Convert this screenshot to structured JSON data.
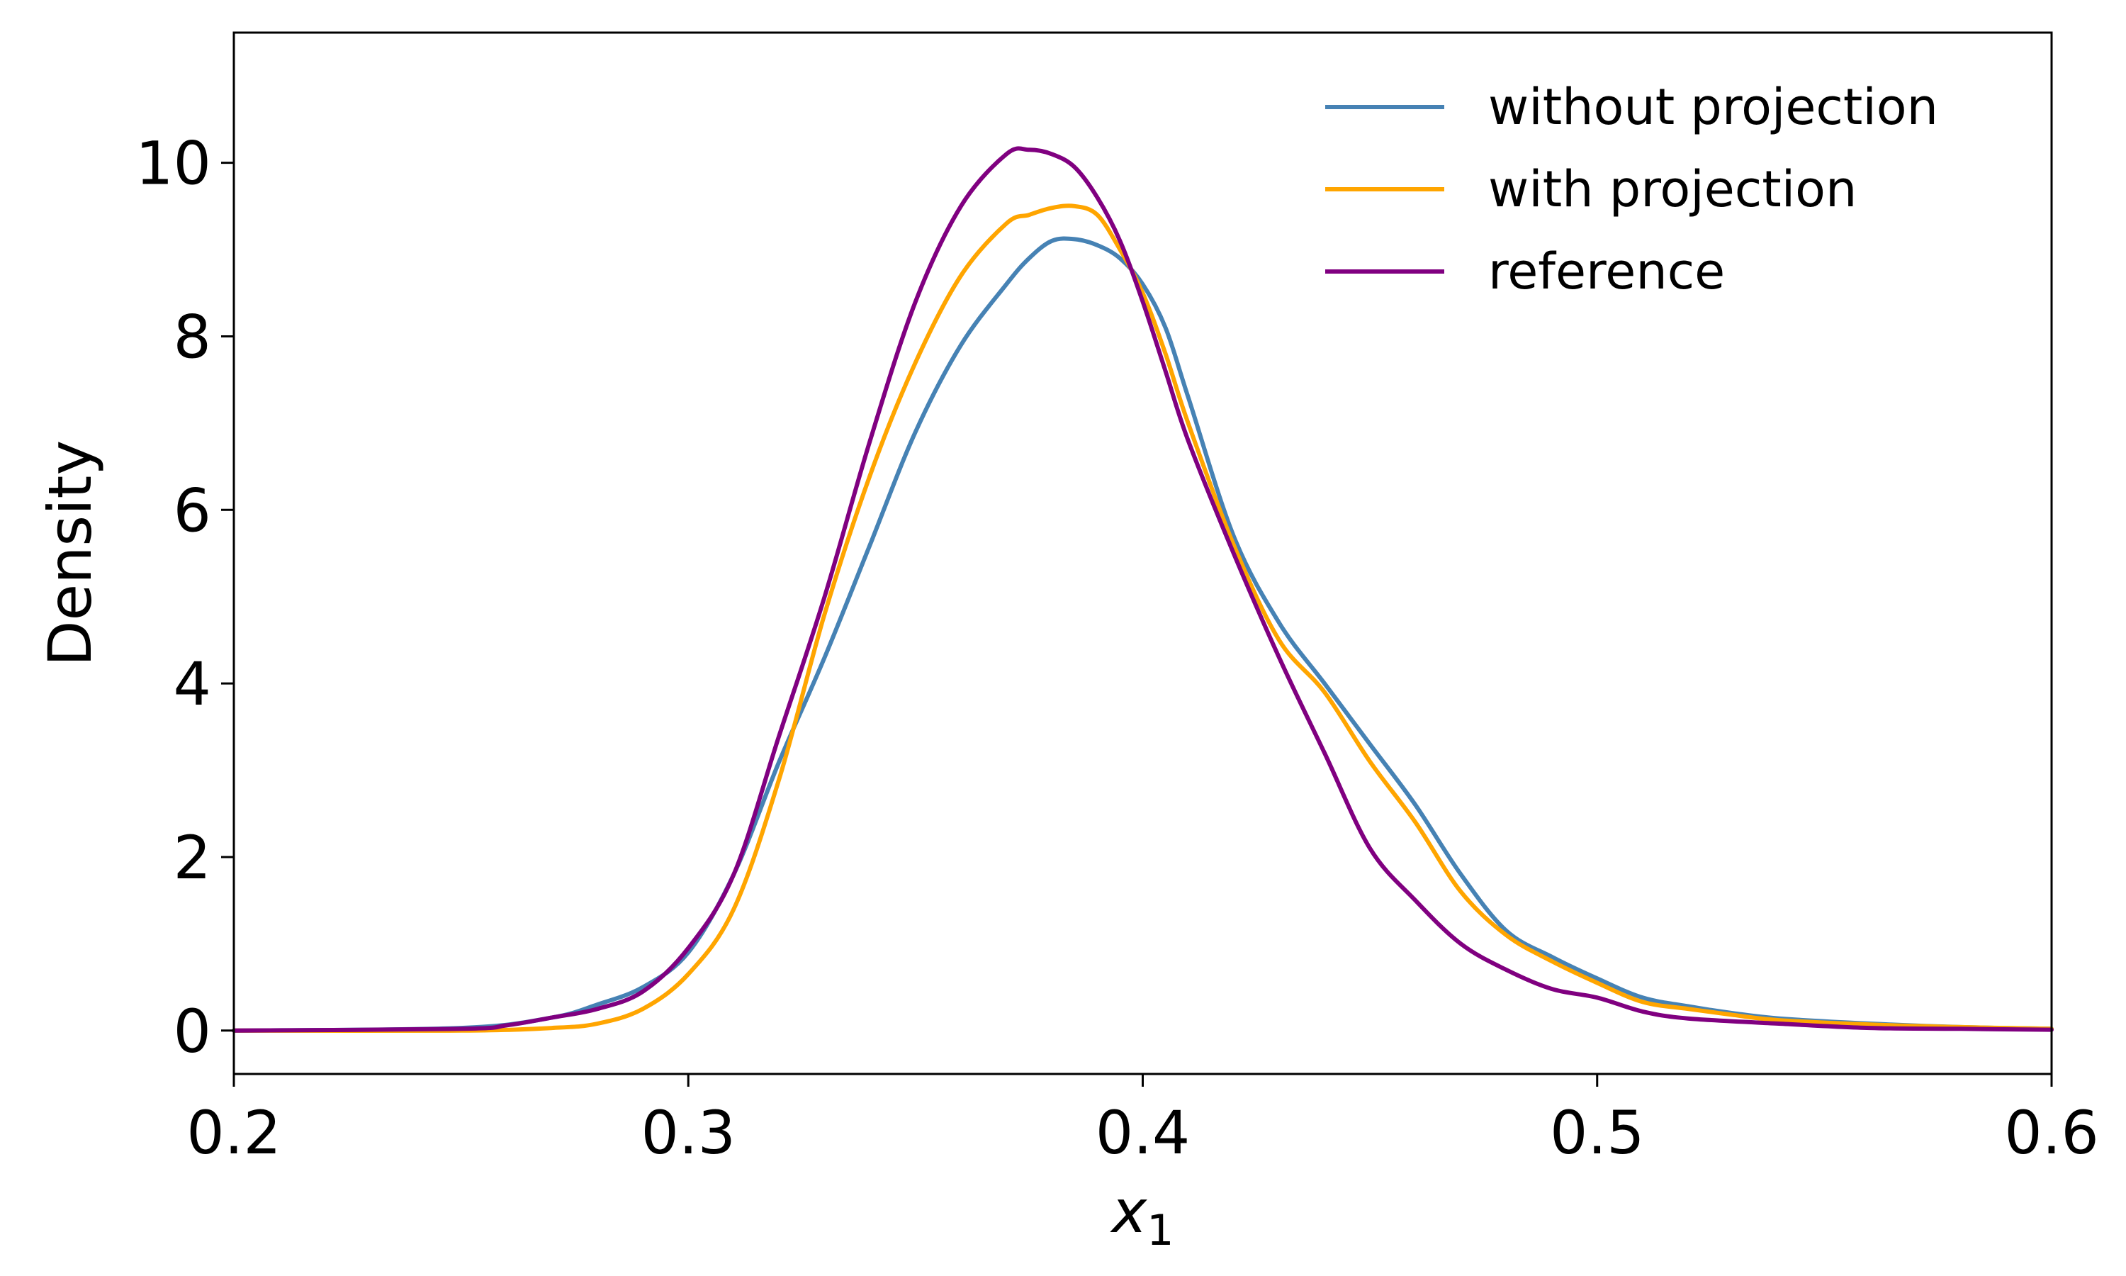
{
  "chart_data": {
    "type": "line",
    "title": "",
    "xlabel": "x",
    "xlabel_subscript": "1",
    "ylabel": "Density",
    "xlim": [
      0.2,
      0.6
    ],
    "ylim": [
      -0.5,
      11.5
    ],
    "xticks": [
      0.2,
      0.3,
      0.4,
      0.5,
      0.6
    ],
    "xtick_labels": [
      "0.2",
      "0.3",
      "0.4",
      "0.5",
      "0.6"
    ],
    "yticks": [
      0,
      2,
      4,
      6,
      8,
      10
    ],
    "ytick_labels": [
      "0",
      "2",
      "4",
      "6",
      "8",
      "10"
    ],
    "grid": false,
    "legend_position": "top-right",
    "series": [
      {
        "name": "without projection",
        "color": "#4682B4",
        "x": [
          0.2,
          0.25,
          0.27,
          0.28,
          0.29,
          0.3,
          0.31,
          0.32,
          0.33,
          0.34,
          0.35,
          0.36,
          0.37,
          0.375,
          0.38,
          0.385,
          0.39,
          0.395,
          0.4,
          0.405,
          0.41,
          0.42,
          0.43,
          0.44,
          0.45,
          0.46,
          0.47,
          0.48,
          0.49,
          0.5,
          0.51,
          0.52,
          0.53,
          0.54,
          0.56,
          0.58,
          0.6
        ],
        "y": [
          0.0,
          0.03,
          0.15,
          0.3,
          0.5,
          0.9,
          1.8,
          3.1,
          4.3,
          5.6,
          6.9,
          7.9,
          8.6,
          8.9,
          9.1,
          9.12,
          9.05,
          8.9,
          8.6,
          8.1,
          7.3,
          5.7,
          4.7,
          4.0,
          3.3,
          2.6,
          1.8,
          1.15,
          0.85,
          0.6,
          0.38,
          0.28,
          0.2,
          0.14,
          0.08,
          0.04,
          0.02
        ]
      },
      {
        "name": "with projection",
        "color": "#FFA500",
        "x": [
          0.2,
          0.25,
          0.27,
          0.28,
          0.29,
          0.3,
          0.31,
          0.32,
          0.33,
          0.34,
          0.35,
          0.36,
          0.37,
          0.375,
          0.38,
          0.385,
          0.39,
          0.395,
          0.4,
          0.405,
          0.41,
          0.42,
          0.43,
          0.44,
          0.45,
          0.46,
          0.47,
          0.48,
          0.49,
          0.5,
          0.51,
          0.52,
          0.53,
          0.54,
          0.56,
          0.58,
          0.6
        ],
        "y": [
          0.0,
          0.0,
          0.03,
          0.08,
          0.25,
          0.65,
          1.4,
          2.9,
          4.8,
          6.4,
          7.7,
          8.7,
          9.3,
          9.4,
          9.48,
          9.5,
          9.4,
          9.0,
          8.5,
          7.8,
          7.0,
          5.6,
          4.5,
          3.9,
          3.1,
          2.4,
          1.6,
          1.1,
          0.8,
          0.55,
          0.33,
          0.25,
          0.18,
          0.12,
          0.07,
          0.04,
          0.02
        ]
      },
      {
        "name": "reference",
        "color": "#800080",
        "x": [
          0.2,
          0.25,
          0.26,
          0.27,
          0.28,
          0.29,
          0.3,
          0.31,
          0.32,
          0.33,
          0.34,
          0.35,
          0.36,
          0.37,
          0.375,
          0.38,
          0.385,
          0.39,
          0.395,
          0.4,
          0.405,
          0.41,
          0.42,
          0.43,
          0.44,
          0.45,
          0.46,
          0.47,
          0.48,
          0.49,
          0.5,
          0.51,
          0.52,
          0.54,
          0.56,
          0.58,
          0.6
        ],
        "y": [
          0.0,
          0.02,
          0.06,
          0.15,
          0.25,
          0.45,
          0.95,
          1.8,
          3.4,
          5.0,
          6.8,
          8.4,
          9.5,
          10.1,
          10.15,
          10.1,
          9.95,
          9.6,
          9.1,
          8.4,
          7.6,
          6.8,
          5.5,
          4.3,
          3.2,
          2.1,
          1.5,
          1.0,
          0.7,
          0.48,
          0.38,
          0.22,
          0.14,
          0.08,
          0.03,
          0.02,
          0.01
        ]
      }
    ]
  }
}
